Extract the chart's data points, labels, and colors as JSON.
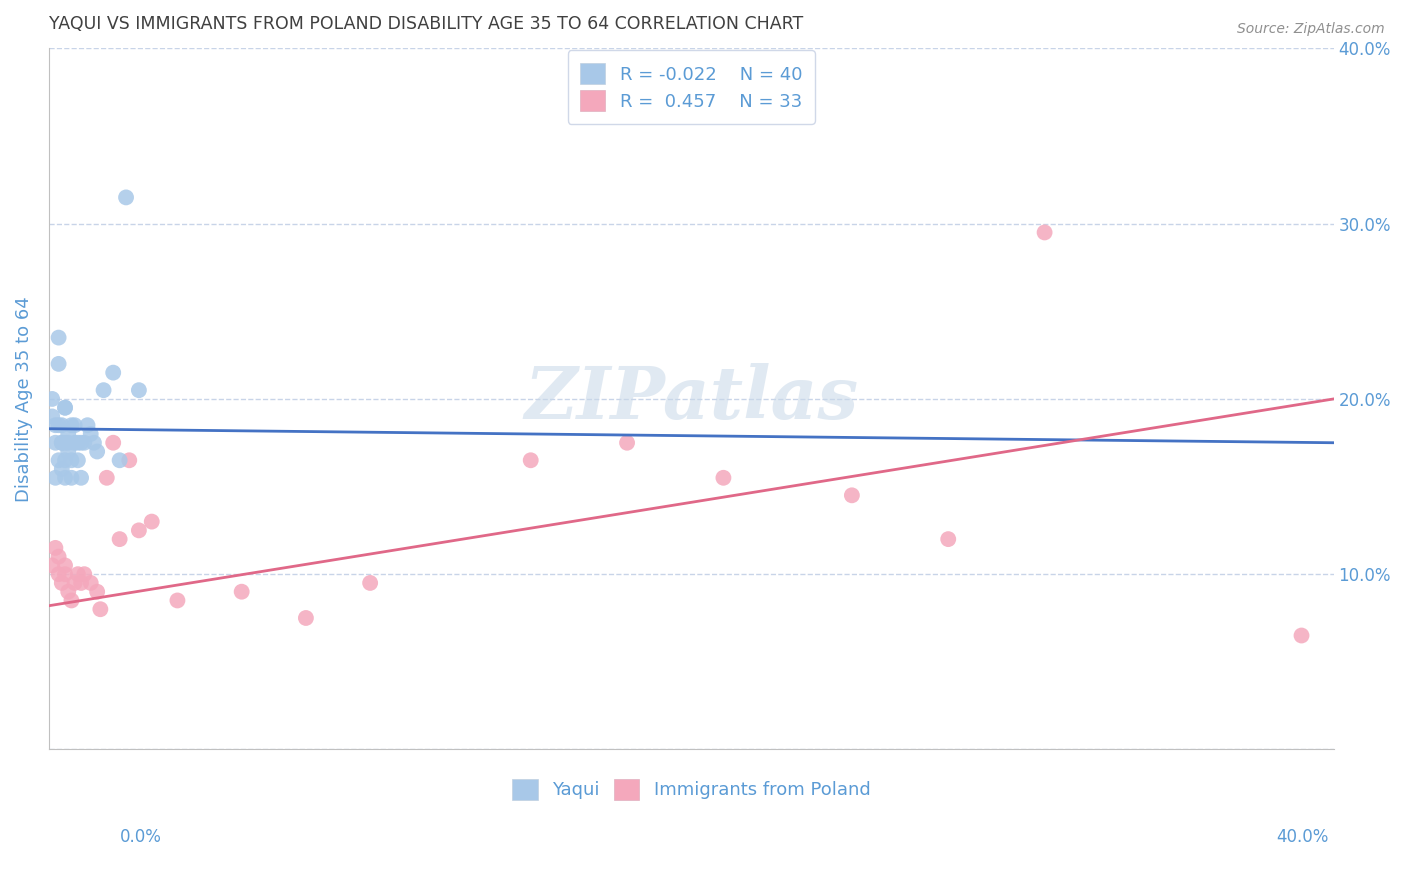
{
  "title": "YAQUI VS IMMIGRANTS FROM POLAND DISABILITY AGE 35 TO 64 CORRELATION CHART",
  "source": "Source: ZipAtlas.com",
  "ylabel": "Disability Age 35 to 64",
  "xlim": [
    0.0,
    0.4
  ],
  "ylim": [
    0.0,
    0.4
  ],
  "yticks": [
    0.0,
    0.1,
    0.2,
    0.3,
    0.4
  ],
  "ytick_labels_right": [
    "",
    "10.0%",
    "20.0%",
    "30.0%",
    "40.0%"
  ],
  "legend_labels": [
    "Yaqui",
    "Immigrants from Poland"
  ],
  "R_yaqui": -0.022,
  "N_yaqui": 40,
  "R_poland": 0.457,
  "N_poland": 33,
  "color_yaqui": "#a8c8e8",
  "color_poland": "#f4a8bc",
  "color_yaqui_line": "#4472c4",
  "color_poland_line": "#e06888",
  "background_color": "#ffffff",
  "grid_color": "#c8d4e8",
  "title_color": "#404040",
  "axis_color": "#5b9bd5",
  "watermark": "ZIPatlas",
  "yaqui_x": [
    0.001,
    0.001,
    0.002,
    0.002,
    0.002,
    0.003,
    0.003,
    0.003,
    0.003,
    0.004,
    0.004,
    0.004,
    0.004,
    0.005,
    0.005,
    0.005,
    0.005,
    0.005,
    0.006,
    0.006,
    0.006,
    0.007,
    0.007,
    0.007,
    0.008,
    0.008,
    0.009,
    0.009,
    0.01,
    0.01,
    0.011,
    0.012,
    0.013,
    0.014,
    0.015,
    0.017,
    0.02,
    0.022,
    0.024,
    0.028
  ],
  "yaqui_y": [
    0.19,
    0.2,
    0.155,
    0.185,
    0.175,
    0.22,
    0.235,
    0.185,
    0.165,
    0.175,
    0.16,
    0.185,
    0.175,
    0.195,
    0.175,
    0.165,
    0.155,
    0.195,
    0.18,
    0.17,
    0.175,
    0.165,
    0.155,
    0.185,
    0.175,
    0.185,
    0.165,
    0.175,
    0.155,
    0.175,
    0.175,
    0.185,
    0.18,
    0.175,
    0.17,
    0.205,
    0.215,
    0.165,
    0.315,
    0.205
  ],
  "poland_x": [
    0.001,
    0.002,
    0.003,
    0.003,
    0.004,
    0.005,
    0.005,
    0.006,
    0.007,
    0.008,
    0.009,
    0.01,
    0.011,
    0.013,
    0.015,
    0.016,
    0.018,
    0.02,
    0.022,
    0.025,
    0.028,
    0.032,
    0.04,
    0.06,
    0.08,
    0.1,
    0.15,
    0.18,
    0.21,
    0.25,
    0.28,
    0.31,
    0.39
  ],
  "poland_y": [
    0.105,
    0.115,
    0.1,
    0.11,
    0.095,
    0.105,
    0.1,
    0.09,
    0.085,
    0.095,
    0.1,
    0.095,
    0.1,
    0.095,
    0.09,
    0.08,
    0.155,
    0.175,
    0.12,
    0.165,
    0.125,
    0.13,
    0.085,
    0.09,
    0.075,
    0.095,
    0.165,
    0.175,
    0.155,
    0.145,
    0.12,
    0.295,
    0.065
  ],
  "yaqui_line_x": [
    0.0,
    0.4
  ],
  "yaqui_line_y": [
    0.183,
    0.175
  ],
  "poland_line_x": [
    0.0,
    0.4
  ],
  "poland_line_y": [
    0.082,
    0.2
  ]
}
